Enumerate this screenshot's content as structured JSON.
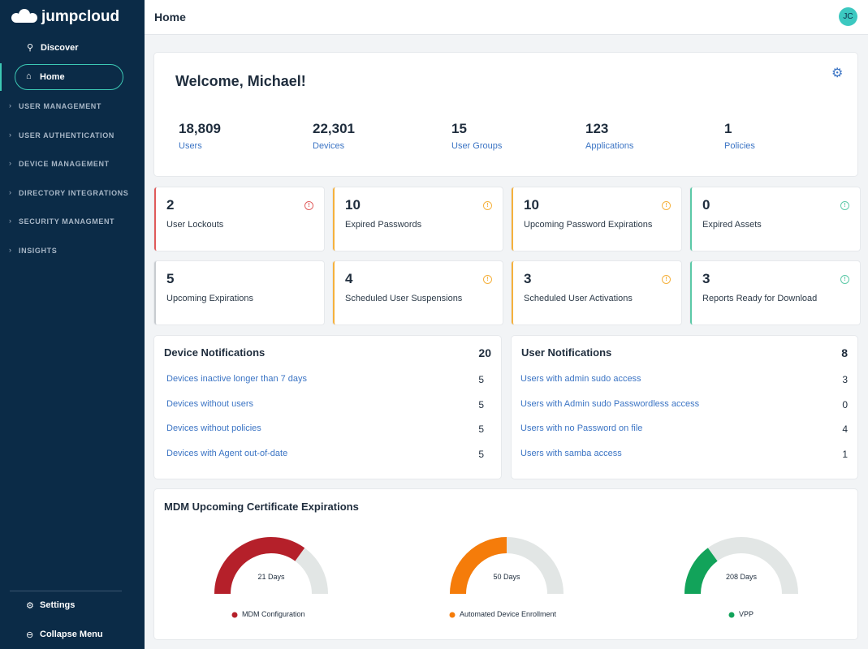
{
  "sidebar": {
    "logo": "jumpcloud",
    "nav": [
      "Discover",
      "Home"
    ],
    "sections": [
      "USER MANAGEMENT",
      "USER AUTHENTICATION",
      "DEVICE MANAGEMENT",
      "DIRECTORY INTEGRATIONS",
      "SECURITY MANAGMENT",
      "INSIGHTS"
    ],
    "footer": [
      "Settings",
      "Collapse Menu"
    ]
  },
  "header": {
    "title": "Home",
    "avatar": "JC"
  },
  "welcome": {
    "title": "Welcome, Michael!",
    "stats": [
      {
        "value": "18,809",
        "label": "Users"
      },
      {
        "value": "22,301",
        "label": "Devices"
      },
      {
        "value": "15",
        "label": "User Groups"
      },
      {
        "value": "123",
        "label": "Applications"
      },
      {
        "value": "1",
        "label": "Policies"
      }
    ]
  },
  "alerts": [
    {
      "value": 2,
      "label": "User Lockouts"
    },
    {
      "value": 10,
      "label": "Expired Passwords"
    },
    {
      "value": 10,
      "label": "Upcoming Password Expirations"
    },
    {
      "value": 0,
      "label": "Expired Assets"
    },
    {
      "value": 5,
      "label": "Upcoming Expirations"
    },
    {
      "value": 4,
      "label": "Scheduled User Suspensions"
    },
    {
      "value": 3,
      "label": "Scheduled User Activations"
    },
    {
      "value": 3,
      "label": "Reports Ready for Download"
    }
  ],
  "device_notifications": {
    "title": "Device Notifications",
    "total": 20,
    "items": [
      {
        "label": "Devices inactive longer than 7 days",
        "count": 5
      },
      {
        "label": "Devices without users",
        "count": 5
      },
      {
        "label": "Devices without policies",
        "count": 5
      },
      {
        "label": "Devices with Agent out-of-date",
        "count": 5
      }
    ]
  },
  "user_notifications": {
    "title": "User Notifications",
    "total": 8,
    "items": [
      {
        "label": "Users with admin sudo access",
        "count": 3
      },
      {
        "label": "Users with Admin sudo Passwordless access",
        "count": 0
      },
      {
        "label": "Users with no Password on file",
        "count": 4
      },
      {
        "label": "Users with samba access",
        "count": 1
      }
    ]
  },
  "mdm": {
    "title": "MDM Upcoming Certificate Expirations",
    "gauges": [
      {
        "label": "21 Days",
        "name": "MDM Configuration"
      },
      {
        "label": "50 Days",
        "name": "Automated Device Enrollment"
      },
      {
        "label": "208 Days",
        "name": "VPP"
      }
    ]
  }
}
